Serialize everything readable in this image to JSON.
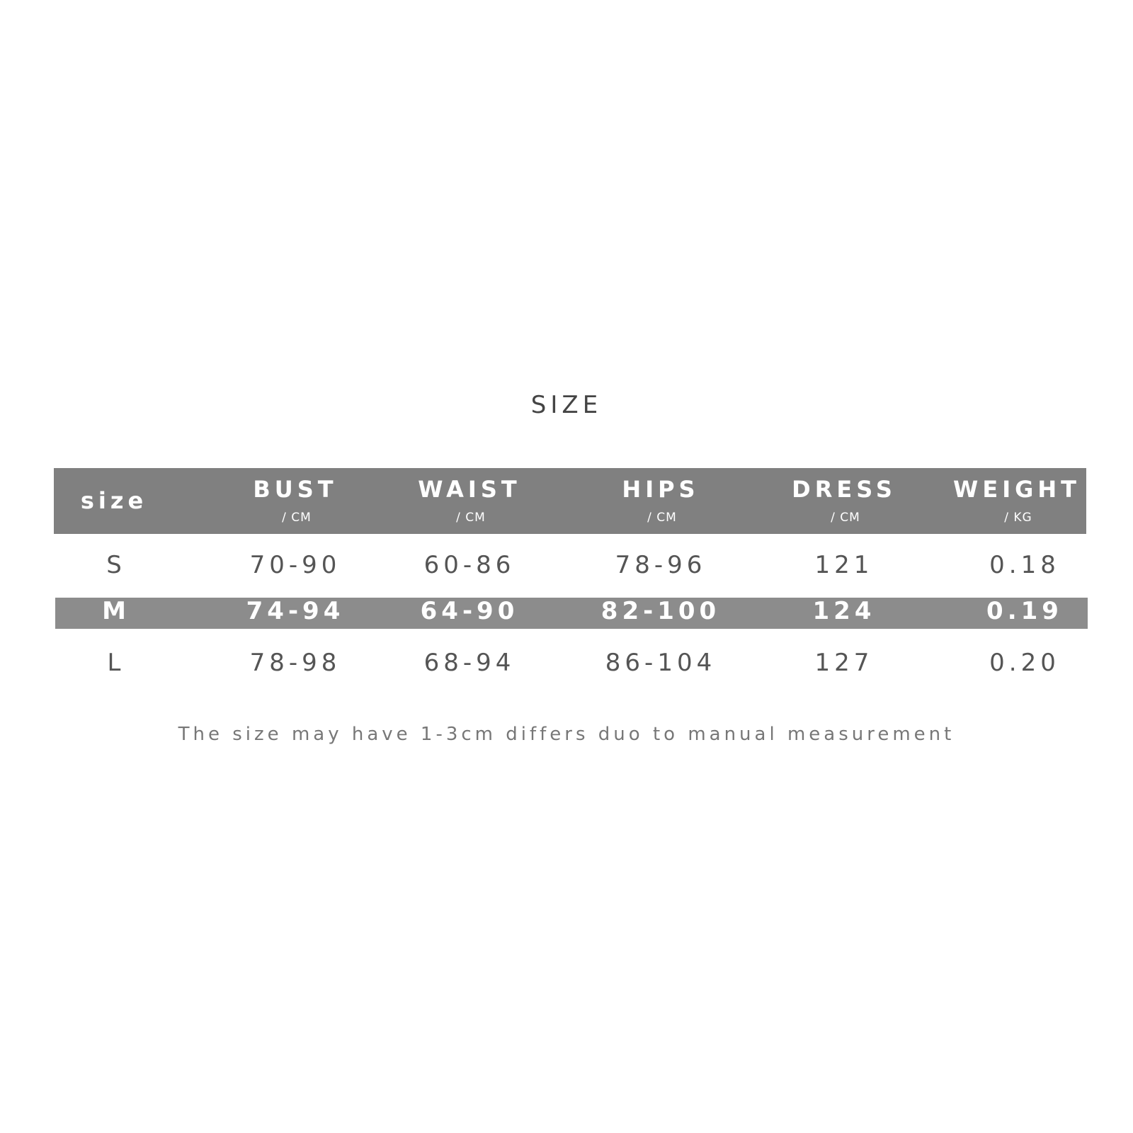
{
  "title": "SIZE",
  "table": {
    "header": {
      "size": "size",
      "columns": [
        {
          "name": "BUST",
          "unit": "/ CM"
        },
        {
          "name": "WAIST",
          "unit": "/ CM"
        },
        {
          "name": "HIPS",
          "unit": "/ CM"
        },
        {
          "name": "DRESS",
          "unit": "/ CM"
        },
        {
          "name": "WEIGHT",
          "unit": "/ KG"
        }
      ]
    },
    "rows": [
      {
        "size": "S",
        "values": [
          "70-90",
          "60-86",
          "78-96",
          "121",
          "0.18"
        ]
      },
      {
        "size": "M",
        "values": [
          "74-94",
          "64-90",
          "82-100",
          "124",
          "0.19"
        ]
      },
      {
        "size": "L",
        "values": [
          "78-98",
          "68-94",
          "86-104",
          "127",
          "0.20"
        ]
      }
    ]
  },
  "note": "The size may have 1-3cm differs duo to manual measurement",
  "colors": {
    "header_bg": "#808080",
    "highlight_row_bg": "#8c8c8c",
    "text": "#555555"
  }
}
